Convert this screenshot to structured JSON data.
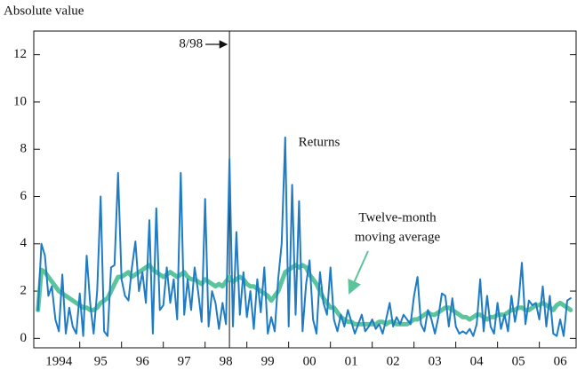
{
  "chart_data": {
    "type": "line",
    "ylabel": "Absolute value",
    "xlim": [
      1993.9,
      2006.88
    ],
    "ylim": [
      -0.4,
      13.0
    ],
    "yticks": [
      0,
      2,
      4,
      6,
      8,
      10,
      12
    ],
    "xticks": [
      {
        "value": 1994.5,
        "label": "1994"
      },
      {
        "value": 1995.5,
        "label": "95"
      },
      {
        "value": 1996.5,
        "label": "96"
      },
      {
        "value": 1997.5,
        "label": "97"
      },
      {
        "value": 1998.5,
        "label": "98"
      },
      {
        "value": 1999.5,
        "label": "99"
      },
      {
        "value": 2000.5,
        "label": "00"
      },
      {
        "value": 2001.5,
        "label": "01"
      },
      {
        "value": 2002.5,
        "label": "02"
      },
      {
        "value": 2003.5,
        "label": "03"
      },
      {
        "value": 2004.5,
        "label": "04"
      },
      {
        "value": 2005.5,
        "label": "05"
      },
      {
        "value": 2006.5,
        "label": "06"
      }
    ],
    "xminorticks": [
      1995,
      1996,
      1997,
      1998,
      1999,
      2000,
      2001,
      2002,
      2003,
      2004,
      2005,
      2006
    ],
    "vline": {
      "x": 1998.583,
      "label": "8/98"
    },
    "annotations": [
      {
        "text": "Returns",
        "series": 0
      },
      {
        "lines": [
          "Twelve-month",
          "moving average"
        ],
        "series": 1
      }
    ],
    "x": [
      1994,
      1994.083,
      1994.167,
      1994.25,
      1994.333,
      1994.417,
      1994.5,
      1994.583,
      1994.667,
      1994.75,
      1994.833,
      1994.917,
      1995,
      1995.083,
      1995.167,
      1995.25,
      1995.333,
      1995.417,
      1995.5,
      1995.583,
      1995.667,
      1995.75,
      1995.833,
      1995.917,
      1996,
      1996.083,
      1996.167,
      1996.25,
      1996.333,
      1996.417,
      1996.5,
      1996.583,
      1996.667,
      1996.75,
      1996.833,
      1996.917,
      1997,
      1997.083,
      1997.167,
      1997.25,
      1997.333,
      1997.417,
      1997.5,
      1997.583,
      1997.667,
      1997.75,
      1997.833,
      1997.917,
      1998,
      1998.083,
      1998.167,
      1998.25,
      1998.333,
      1998.417,
      1998.5,
      1998.583,
      1998.667,
      1998.75,
      1998.833,
      1998.917,
      1999,
      1999.083,
      1999.167,
      1999.25,
      1999.333,
      1999.417,
      1999.5,
      1999.583,
      1999.667,
      1999.75,
      1999.833,
      1999.917,
      2000,
      2000.083,
      2000.167,
      2000.25,
      2000.333,
      2000.417,
      2000.5,
      2000.583,
      2000.667,
      2000.75,
      2000.833,
      2000.917,
      2001,
      2001.083,
      2001.167,
      2001.25,
      2001.333,
      2001.417,
      2001.5,
      2001.583,
      2001.667,
      2001.75,
      2001.833,
      2001.917,
      2002,
      2002.083,
      2002.167,
      2002.25,
      2002.333,
      2002.417,
      2002.5,
      2002.583,
      2002.667,
      2002.75,
      2002.833,
      2002.917,
      2003,
      2003.083,
      2003.167,
      2003.25,
      2003.333,
      2003.417,
      2003.5,
      2003.583,
      2003.667,
      2003.75,
      2003.833,
      2003.917,
      2004,
      2004.083,
      2004.167,
      2004.25,
      2004.333,
      2004.417,
      2004.5,
      2004.583,
      2004.667,
      2004.75,
      2004.833,
      2004.917,
      2005,
      2005.083,
      2005.167,
      2005.25,
      2005.333,
      2005.417,
      2005.5,
      2005.583,
      2005.667,
      2005.75,
      2005.833,
      2005.917,
      2006,
      2006.083,
      2006.167,
      2006.25,
      2006.333,
      2006.417,
      2006.5,
      2006.583,
      2006.667,
      2006.75
    ],
    "series": [
      {
        "name": "Returns",
        "color": "#1f7cc4",
        "width": 2,
        "values": [
          1.2,
          4.0,
          3.5,
          1.8,
          2.2,
          0.8,
          0.3,
          2.7,
          0.2,
          1.3,
          0.5,
          0.2,
          1.9,
          0.1,
          3.5,
          1.5,
          0.2,
          2.0,
          6.0,
          0.3,
          0.1,
          3.0,
          3.1,
          7.0,
          2.5,
          1.8,
          1.6,
          3.0,
          4.1,
          2.0,
          2.8,
          1.5,
          5.0,
          0.2,
          5.5,
          1.2,
          1.4,
          3.0,
          1.5,
          2.5,
          0.8,
          7.0,
          1.0,
          2.5,
          1.2,
          3.0,
          2.0,
          0.7,
          5.9,
          0.5,
          2.0,
          1.5,
          0.4,
          1.5,
          0.6,
          7.6,
          0.5,
          4.5,
          1.0,
          2.8,
          0.9,
          2.0,
          0.4,
          2.5,
          1.1,
          3.0,
          0.2,
          0.9,
          0.3,
          2.5,
          4.0,
          8.5,
          0.5,
          6.5,
          1.0,
          5.8,
          0.3,
          2.3,
          3.3,
          0.8,
          0.2,
          2.8,
          1.5,
          1.0,
          3.0,
          0.8,
          0.3,
          1.0,
          0.5,
          1.2,
          0.7,
          0.2,
          0.6,
          1.0,
          0.3,
          0.5,
          0.8,
          0.4,
          0.6,
          0.2,
          0.8,
          1.5,
          0.5,
          0.9,
          0.6,
          1.0,
          0.8,
          0.6,
          1.8,
          2.6,
          0.6,
          0.3,
          1.2,
          0.8,
          0.2,
          0.9,
          1.9,
          1.8,
          0.5,
          1.7,
          0.5,
          0.2,
          0.3,
          0.2,
          0.4,
          0.1,
          0.6,
          2.5,
          0.3,
          1.8,
          0.5,
          0.2,
          1.5,
          0.4,
          1.0,
          0.3,
          1.8,
          0.7,
          1.5,
          3.2,
          0.6,
          1.6,
          1.4,
          1.5,
          0.8,
          2.2,
          0.5,
          1.8,
          0.2,
          0.1,
          0.8,
          0.1,
          1.6,
          1.7
        ]
      },
      {
        "name": "Twelve-month moving average",
        "color": "#5cc49a",
        "width": 5,
        "values": [
          1.2,
          2.9,
          2.8,
          2.6,
          2.4,
          2.2,
          2.0,
          1.9,
          1.8,
          1.7,
          1.6,
          1.5,
          1.4,
          1.3,
          1.3,
          1.2,
          1.2,
          1.3,
          1.5,
          1.6,
          1.7,
          2.0,
          2.3,
          2.6,
          2.6,
          2.7,
          2.8,
          2.6,
          2.7,
          2.8,
          2.9,
          3.0,
          3.1,
          2.9,
          2.8,
          2.7,
          2.6,
          2.7,
          2.8,
          2.7,
          2.6,
          2.7,
          2.8,
          2.6,
          2.5,
          2.5,
          2.4,
          2.3,
          2.5,
          2.4,
          2.3,
          2.2,
          2.3,
          2.2,
          2.4,
          2.6,
          2.4,
          2.5,
          2.6,
          2.5,
          2.3,
          2.2,
          2.2,
          2.1,
          2.0,
          1.9,
          1.8,
          1.6,
          1.8,
          2.0,
          2.4,
          2.8,
          2.9,
          3.0,
          3.1,
          3.0,
          3.1,
          3.0,
          2.7,
          2.5,
          2.3,
          2.0,
          1.7,
          1.5,
          1.3,
          1.3,
          1.1,
          0.9,
          0.8,
          0.7,
          0.7,
          0.6,
          0.6,
          0.6,
          0.6,
          0.6,
          0.6,
          0.6,
          0.7,
          0.7,
          0.6,
          0.7,
          0.7,
          0.6,
          0.6,
          0.6,
          0.6,
          0.7,
          0.8,
          0.8,
          0.9,
          1.0,
          1.1,
          1.0,
          1.0,
          1.1,
          1.2,
          1.3,
          1.3,
          1.2,
          1.1,
          1.0,
          0.9,
          0.9,
          0.8,
          0.9,
          1.0,
          1.0,
          0.9,
          0.8,
          0.9,
          0.9,
          1.0,
          1.0,
          1.0,
          1.1,
          1.2,
          1.2,
          1.3,
          1.3,
          1.2,
          1.2,
          1.3,
          1.4,
          1.4,
          1.5,
          1.4,
          1.3,
          1.2,
          1.4,
          1.5,
          1.4,
          1.3,
          1.2
        ]
      }
    ]
  }
}
